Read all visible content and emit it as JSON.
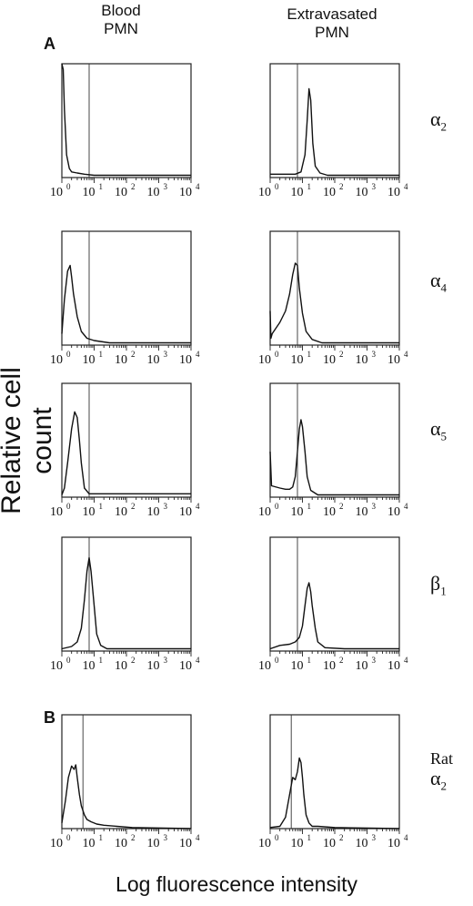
{
  "header": {
    "col_left": [
      "Blood",
      "PMN"
    ],
    "col_right": [
      "Extravasated",
      "PMN"
    ]
  },
  "panel_letters": {
    "a": "A",
    "b": "B"
  },
  "axis": {
    "ylabel": "Relative cell count",
    "xlabel": "Log fluorescence intensity",
    "tick_base": "10",
    "tick_exponents": [
      "0",
      "1",
      "2",
      "3",
      "4"
    ]
  },
  "rows": [
    {
      "greek": "α",
      "sub": "2",
      "prefix": ""
    },
    {
      "greek": "α",
      "sub": "4",
      "prefix": ""
    },
    {
      "greek": "α",
      "sub": "5",
      "prefix": ""
    },
    {
      "greek": "β",
      "sub": "1",
      "prefix": ""
    },
    {
      "greek": "α",
      "sub": "2",
      "prefix": "Rat"
    }
  ],
  "chart_data": {
    "type": "line",
    "xscale": "log",
    "xlim": [
      1,
      10000
    ],
    "xlabel": "Log fluorescence intensity",
    "ylabel": "Relative cell count",
    "panels": [
      {
        "row": 0,
        "column": "Blood PMN",
        "gate": 7,
        "x": [
          1,
          1.1,
          1.2,
          1.4,
          1.7,
          2,
          3,
          5,
          10,
          100,
          1000,
          10000
        ],
        "y": [
          1.0,
          0.95,
          0.6,
          0.2,
          0.08,
          0.05,
          0.04,
          0.03,
          0.02,
          0.02,
          0.02,
          0.02
        ]
      },
      {
        "row": 0,
        "column": "Extravasated PMN",
        "gate": 7,
        "x": [
          1,
          3,
          6,
          9,
          12,
          14,
          16,
          18,
          21,
          25,
          35,
          60,
          200,
          1000,
          10000
        ],
        "y": [
          0.03,
          0.03,
          0.03,
          0.05,
          0.2,
          0.5,
          0.78,
          0.68,
          0.3,
          0.1,
          0.04,
          0.02,
          0.02,
          0.02,
          0.02
        ]
      },
      {
        "row": 1,
        "column": "Blood PMN",
        "gate": 7,
        "x": [
          1,
          1.2,
          1.5,
          1.8,
          2,
          2.3,
          3,
          4,
          6,
          10,
          30,
          100,
          1000,
          10000
        ],
        "y": [
          0.1,
          0.4,
          0.65,
          0.7,
          0.6,
          0.45,
          0.25,
          0.12,
          0.06,
          0.04,
          0.02,
          0.02,
          0.02,
          0.02
        ]
      },
      {
        "row": 1,
        "column": "Extravasated PMN",
        "gate": 7,
        "x": [
          1,
          1.05,
          1.15,
          2,
          3,
          4,
          5,
          6,
          7,
          8,
          10,
          13,
          20,
          40,
          200,
          10000
        ],
        "y": [
          0.3,
          0.06,
          0.1,
          0.2,
          0.3,
          0.45,
          0.62,
          0.72,
          0.7,
          0.5,
          0.28,
          0.12,
          0.05,
          0.02,
          0.02,
          0.02
        ]
      },
      {
        "row": 2,
        "column": "Blood PMN",
        "gate": 7,
        "x": [
          1,
          1.2,
          1.5,
          2,
          2.5,
          3,
          3.5,
          4,
          5,
          7,
          10,
          100,
          1000,
          10000
        ],
        "y": [
          0.02,
          0.08,
          0.3,
          0.6,
          0.75,
          0.7,
          0.5,
          0.3,
          0.08,
          0.03,
          0.03,
          0.03,
          0.03,
          0.03
        ]
      },
      {
        "row": 2,
        "column": "Extravasated PMN",
        "gate": 7,
        "x": [
          1,
          1.1,
          2,
          3,
          4,
          5,
          6,
          7,
          8,
          9,
          10,
          12,
          14,
          18,
          30,
          100,
          10000
        ],
        "y": [
          0.4,
          0.1,
          0.08,
          0.07,
          0.07,
          0.09,
          0.18,
          0.4,
          0.6,
          0.68,
          0.62,
          0.4,
          0.18,
          0.06,
          0.02,
          0.02,
          0.02
        ]
      },
      {
        "row": 3,
        "column": "Blood PMN",
        "gate": 7,
        "x": [
          1,
          2,
          3,
          4,
          5,
          6,
          7,
          8,
          10,
          12,
          16,
          25,
          100,
          10000
        ],
        "y": [
          0.02,
          0.04,
          0.08,
          0.2,
          0.45,
          0.7,
          0.82,
          0.7,
          0.4,
          0.15,
          0.05,
          0.02,
          0.02,
          0.02
        ]
      },
      {
        "row": 3,
        "column": "Extravasated PMN",
        "gate": 7,
        "x": [
          1,
          2,
          4,
          6,
          8,
          10,
          12,
          14,
          16,
          18,
          20,
          25,
          30,
          50,
          200,
          10000
        ],
        "y": [
          0.02,
          0.05,
          0.06,
          0.08,
          0.12,
          0.22,
          0.4,
          0.55,
          0.6,
          0.52,
          0.4,
          0.2,
          0.08,
          0.03,
          0.02,
          0.02
        ]
      },
      {
        "row": 4,
        "column": "Blood PMN",
        "gate": 4.5,
        "x": [
          1,
          1.3,
          1.6,
          2,
          2.4,
          2.7,
          3,
          3.5,
          4,
          5,
          6,
          8,
          12,
          20,
          50,
          150,
          10000
        ],
        "y": [
          0.05,
          0.25,
          0.45,
          0.55,
          0.52,
          0.56,
          0.45,
          0.3,
          0.2,
          0.12,
          0.08,
          0.06,
          0.04,
          0.03,
          0.02,
          0.01,
          0.0
        ]
      },
      {
        "row": 4,
        "column": "Extravasated PMN",
        "gate": 4.5,
        "x": [
          1,
          2,
          3,
          4,
          5,
          6,
          7,
          8,
          9,
          10,
          11,
          13,
          16,
          20,
          30,
          100,
          10000
        ],
        "y": [
          0.01,
          0.02,
          0.1,
          0.3,
          0.45,
          0.43,
          0.5,
          0.62,
          0.58,
          0.45,
          0.3,
          0.12,
          0.05,
          0.02,
          0.02,
          0.01,
          0.0
        ]
      }
    ]
  }
}
